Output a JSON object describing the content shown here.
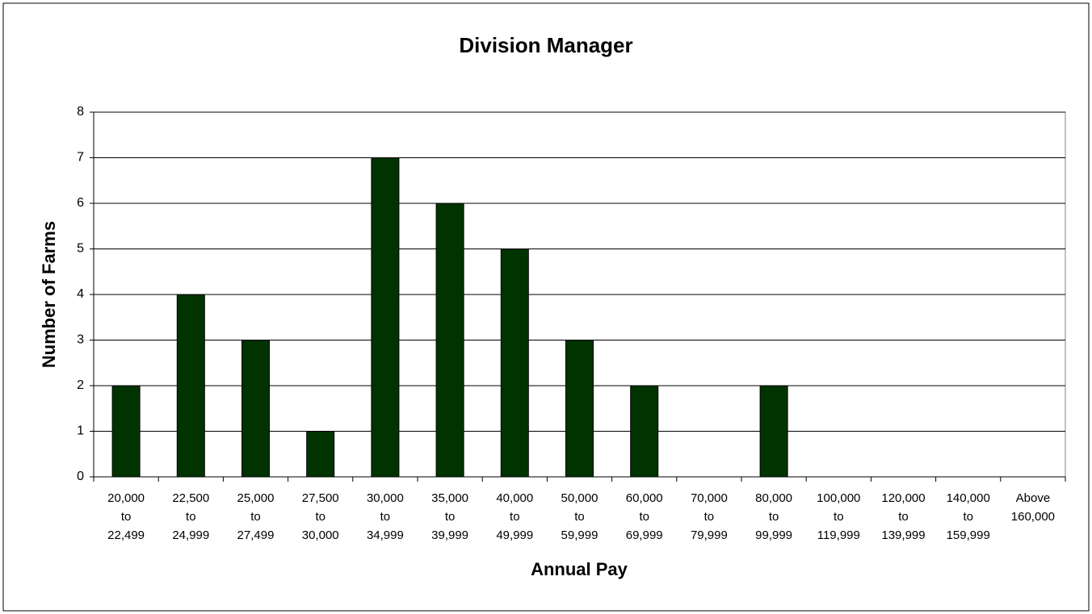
{
  "chart_data": {
    "type": "bar",
    "title": "Division Manager",
    "x_label": "Annual Pay",
    "y_label": "Number of Farms",
    "categories": [
      [
        "20,000",
        "to",
        "22,499"
      ],
      [
        "22,500",
        "to",
        "24,999"
      ],
      [
        "25,000",
        "to",
        "27,499"
      ],
      [
        "27,500",
        "to",
        "30,000"
      ],
      [
        "30,000",
        "to",
        "34,999"
      ],
      [
        "35,000",
        "to",
        "39,999"
      ],
      [
        "40,000",
        "to",
        "49,999"
      ],
      [
        "50,000",
        "to",
        "59,999"
      ],
      [
        "60,000",
        "to",
        "69,999"
      ],
      [
        "70,000",
        "to",
        "79,999"
      ],
      [
        "80,000",
        "to",
        "99,999"
      ],
      [
        "100,000",
        "to",
        "119,999"
      ],
      [
        "120,000",
        "to",
        "139,999"
      ],
      [
        "140,000",
        "to",
        "159,999"
      ],
      [
        "Above",
        "160,000"
      ]
    ],
    "values": [
      2,
      4,
      3,
      1,
      7,
      6,
      5,
      3,
      2,
      0,
      2,
      0,
      0,
      0,
      0
    ],
    "color": "#003300",
    "ylim": [
      0,
      8
    ],
    "yticks": [
      0,
      1,
      2,
      3,
      4,
      5,
      6,
      7,
      8
    ],
    "grid": true
  }
}
